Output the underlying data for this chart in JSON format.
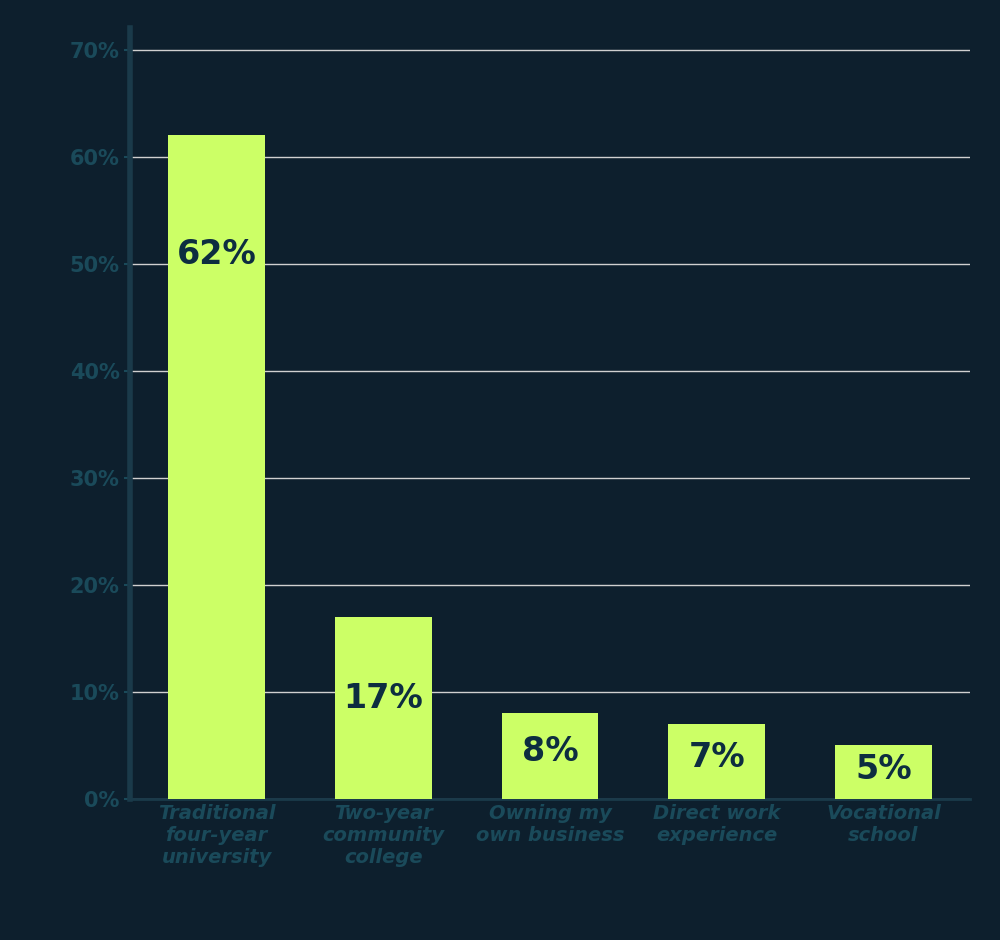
{
  "categories": [
    "Traditional\nfour-year\nuniversity",
    "Two-year\ncommunity\ncollege",
    "Owning my\nown business",
    "Direct work\nexperience",
    "Vocational\nschool"
  ],
  "values": [
    62,
    17,
    8,
    7,
    5
  ],
  "labels": [
    "62%",
    "17%",
    "8%",
    "7%",
    "5%"
  ],
  "bar_color": "#ccff66",
  "background_color": "#0d1f2d",
  "label_text_color": "#0d2d40",
  "ytick_label_color": "#1a4a5a",
  "axis_color": "#1a3a4a",
  "grid_color": "#d0d0d0",
  "label_fontsize": 24,
  "tick_label_fontsize": 15,
  "xtick_label_fontsize": 14,
  "ytick_values": [
    0,
    10,
    20,
    30,
    40,
    50,
    60,
    70
  ],
  "ytick_labels": [
    "0%",
    "10%",
    "20%",
    "30%",
    "40%",
    "50%",
    "60%",
    "70%"
  ],
  "ylim": [
    0,
    72
  ]
}
